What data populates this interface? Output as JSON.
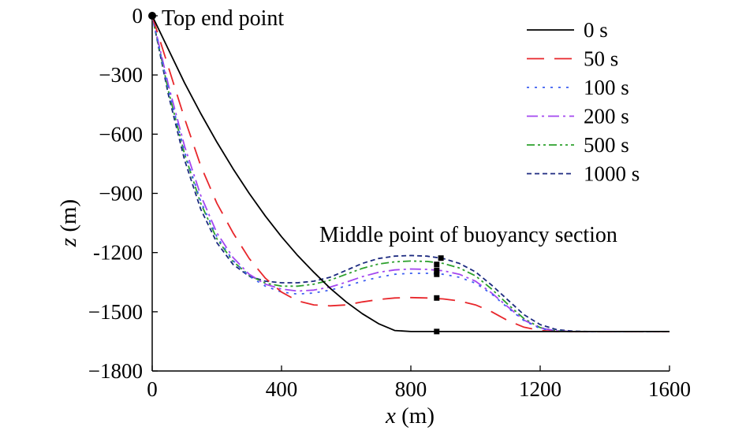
{
  "chart_data": {
    "type": "line",
    "xlabel_var": "x",
    "xlabel_unit": " (m)",
    "ylabel_var": "z",
    "ylabel_unit": " (m)",
    "xlim": [
      0,
      1600
    ],
    "ylim": [
      -1800,
      0
    ],
    "x_ticks": [
      {
        "value": 0,
        "label": "0"
      },
      {
        "value": 400,
        "label": "400"
      },
      {
        "value": 800,
        "label": "800"
      },
      {
        "value": 1200,
        "label": "1200"
      },
      {
        "value": 1600,
        "label": "1600"
      }
    ],
    "y_ticks": [
      {
        "value": 0,
        "label": "0"
      },
      {
        "value": -300,
        "label": "−300"
      },
      {
        "value": -600,
        "label": "−600"
      },
      {
        "value": -900,
        "label": "−900"
      },
      {
        "value": -1200,
        "label": "-1200"
      },
      {
        "value": -1500,
        "label": "−1500"
      },
      {
        "value": -1800,
        "label": "−1800"
      }
    ],
    "annotations": {
      "top_end_point": {
        "text": "Top end point",
        "x": 0,
        "z": 0
      },
      "middle_point": {
        "text": "Middle point of buoyancy section"
      }
    },
    "legend_position": "top-right",
    "grid": false,
    "series": [
      {
        "name": "0 s",
        "color": "#000000",
        "dash": "solid",
        "x": [
          0,
          50,
          100,
          150,
          200,
          250,
          300,
          350,
          400,
          450,
          500,
          550,
          600,
          650,
          700,
          750,
          800,
          850,
          900,
          1000,
          1200,
          1400,
          1600
        ],
        "z": [
          0,
          -170,
          -340,
          -495,
          -640,
          -775,
          -900,
          -1015,
          -1120,
          -1215,
          -1300,
          -1380,
          -1450,
          -1510,
          -1560,
          -1595,
          -1600,
          -1600,
          -1600,
          -1600,
          -1600,
          -1600,
          -1600
        ],
        "marker": [
          880,
          -1600
        ]
      },
      {
        "name": "50 s",
        "color": "#e8262b",
        "dash": "long-dash",
        "x": [
          0,
          50,
          100,
          150,
          200,
          250,
          300,
          350,
          400,
          450,
          500,
          550,
          600,
          650,
          700,
          750,
          800,
          850,
          900,
          950,
          1000,
          1050,
          1100,
          1150,
          1200,
          1250,
          1300,
          1400,
          1600
        ],
        "z": [
          0,
          -260,
          -520,
          -760,
          -950,
          -1100,
          -1230,
          -1330,
          -1400,
          -1445,
          -1465,
          -1470,
          -1465,
          -1450,
          -1438,
          -1430,
          -1428,
          -1430,
          -1435,
          -1445,
          -1465,
          -1500,
          -1545,
          -1578,
          -1595,
          -1600,
          -1600,
          -1600,
          -1600
        ],
        "marker": [
          880,
          -1430
        ]
      },
      {
        "name": "100 s",
        "color": "#3d5ff0",
        "dash": "dotted",
        "x": [
          0,
          50,
          100,
          150,
          200,
          250,
          300,
          350,
          400,
          450,
          500,
          550,
          600,
          650,
          700,
          750,
          800,
          850,
          900,
          950,
          1000,
          1050,
          1100,
          1150,
          1200,
          1250,
          1300,
          1400,
          1600
        ],
        "z": [
          0,
          -370,
          -690,
          -940,
          -1120,
          -1240,
          -1320,
          -1370,
          -1400,
          -1410,
          -1405,
          -1390,
          -1370,
          -1345,
          -1325,
          -1310,
          -1305,
          -1305,
          -1310,
          -1325,
          -1355,
          -1410,
          -1480,
          -1545,
          -1585,
          -1598,
          -1600,
          -1600,
          -1600
        ],
        "marker": [
          880,
          -1310
        ]
      },
      {
        "name": "200 s",
        "color": "#a347f0",
        "dash": "dash-dot",
        "x": [
          0,
          50,
          100,
          150,
          200,
          250,
          300,
          350,
          400,
          450,
          500,
          550,
          600,
          650,
          700,
          750,
          800,
          850,
          900,
          950,
          1000,
          1050,
          1100,
          1150,
          1200,
          1250,
          1300,
          1400,
          1600
        ],
        "z": [
          0,
          -350,
          -660,
          -910,
          -1100,
          -1225,
          -1310,
          -1360,
          -1385,
          -1395,
          -1390,
          -1375,
          -1350,
          -1322,
          -1300,
          -1288,
          -1283,
          -1285,
          -1292,
          -1310,
          -1345,
          -1405,
          -1475,
          -1542,
          -1582,
          -1597,
          -1600,
          -1600,
          -1600
        ],
        "marker": [
          880,
          -1290
        ]
      },
      {
        "name": "500 s",
        "color": "#2ca02c",
        "dash": "dash-dot-dot",
        "x": [
          0,
          50,
          100,
          150,
          200,
          250,
          300,
          350,
          400,
          450,
          500,
          550,
          600,
          650,
          700,
          750,
          800,
          850,
          900,
          950,
          1000,
          1050,
          1100,
          1150,
          1200,
          1250,
          1300,
          1400,
          1600
        ],
        "z": [
          0,
          -380,
          -700,
          -950,
          -1130,
          -1245,
          -1315,
          -1355,
          -1370,
          -1370,
          -1360,
          -1340,
          -1310,
          -1280,
          -1258,
          -1247,
          -1243,
          -1245,
          -1255,
          -1278,
          -1318,
          -1385,
          -1462,
          -1535,
          -1580,
          -1597,
          -1600,
          -1600,
          -1600
        ],
        "marker": [
          880,
          -1260
        ]
      },
      {
        "name": "1000 s",
        "color": "#1c2a80",
        "dash": "short-dash",
        "x": [
          0,
          50,
          100,
          150,
          200,
          250,
          300,
          350,
          400,
          450,
          500,
          550,
          600,
          650,
          700,
          750,
          800,
          850,
          900,
          950,
          1000,
          1050,
          1100,
          1150,
          1200,
          1250,
          1300,
          1350,
          1400,
          1600
        ],
        "z": [
          0,
          -400,
          -730,
          -980,
          -1150,
          -1260,
          -1320,
          -1345,
          -1353,
          -1353,
          -1345,
          -1325,
          -1290,
          -1255,
          -1230,
          -1218,
          -1215,
          -1218,
          -1230,
          -1255,
          -1298,
          -1365,
          -1440,
          -1515,
          -1565,
          -1590,
          -1598,
          -1600,
          -1600,
          -1600
        ],
        "marker": [
          893,
          -1228
        ]
      }
    ]
  }
}
